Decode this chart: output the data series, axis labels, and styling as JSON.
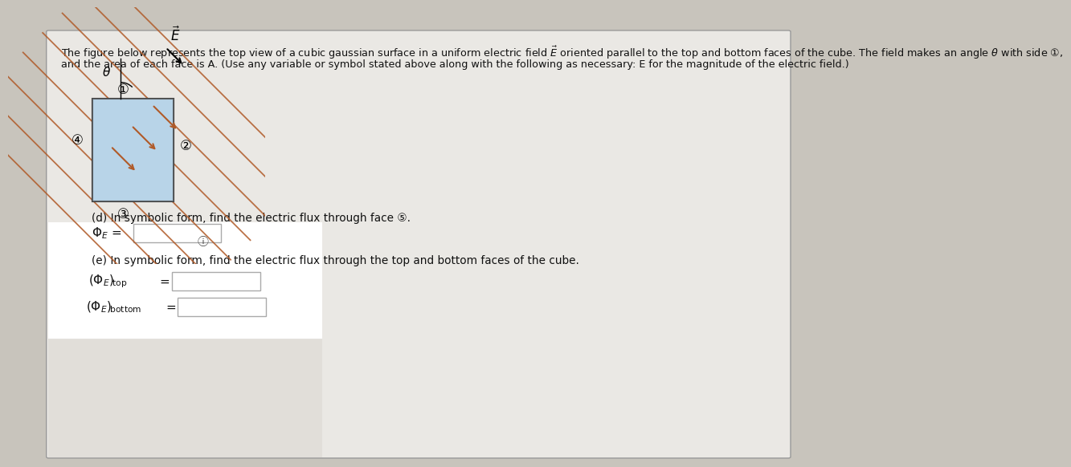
{
  "bg_color": "#c8c4bc",
  "panel_color": "#eae8e4",
  "cube_color": "#b8d4e8",
  "cube_edge_color": "#444444",
  "field_line_color": "#b05a28",
  "arrow_color": "#b05a28",
  "text_color": "#111111",
  "title_line1": "The figure below represents the top view of a cubic gaussian surface in a uniform electric field $\\vec{E}$ oriented parallel to the top and bottom faces of the cube. The field makes an angle $\\theta$ with side ①,",
  "title_line2": "and the area of each face is A. (Use any variable or symbol stated above along with the following as necessary: E for the magnitude of the electric field.)",
  "part_d_text": "(d) In symbolic form, find the electric flux through face ⑤.",
  "part_e_text": "(e) In symbolic form, find the electric flux through the top and bottom faces of the cube.",
  "box_edge_color": "#aaaaaa",
  "white": "#ffffff",
  "blur_box_color": "#f0eeea"
}
